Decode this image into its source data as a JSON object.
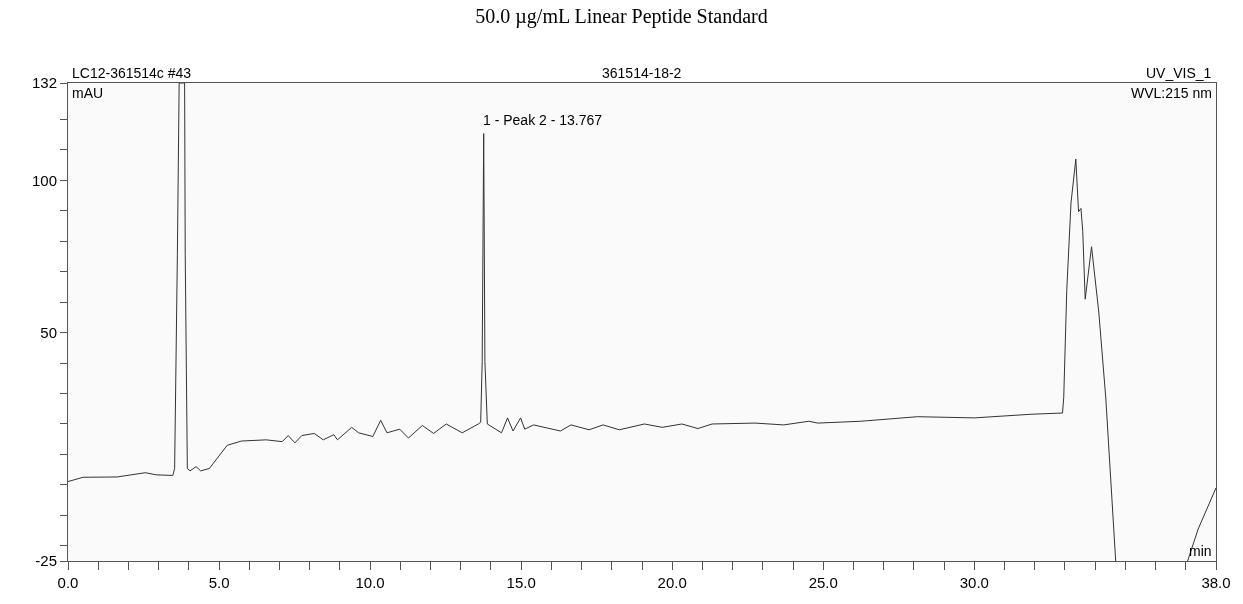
{
  "chart_data": {
    "type": "line",
    "title": "50.0 µg/mL Linear Peptide Standard",
    "xlabel": "min",
    "ylabel": "mAU",
    "annotations": [
      "LC12-361514c #43",
      "361514-18-2",
      "UV_VIS_1",
      "WVL:215 nm",
      {
        "text": "1 - Peak 2 - 13.767",
        "x": 13.767,
        "y": 115.4
      }
    ],
    "xlim": [
      0,
      38
    ],
    "ylim": [
      -25,
      132
    ],
    "xticks": [
      {
        "value": 0,
        "label": "0.0"
      },
      {
        "value": 1,
        "label": null
      },
      {
        "value": 2,
        "label": null
      },
      {
        "value": 3,
        "label": null
      },
      {
        "value": 4,
        "label": null
      },
      {
        "value": 5,
        "label": "5.0"
      },
      {
        "value": 6,
        "label": null
      },
      {
        "value": 7,
        "label": null
      },
      {
        "value": 8,
        "label": null
      },
      {
        "value": 9,
        "label": null
      },
      {
        "value": 10,
        "label": "10.0"
      },
      {
        "value": 11,
        "label": null
      },
      {
        "value": 12,
        "label": null
      },
      {
        "value": 13,
        "label": null
      },
      {
        "value": 14,
        "label": null
      },
      {
        "value": 15,
        "label": "15.0"
      },
      {
        "value": 16,
        "label": null
      },
      {
        "value": 17,
        "label": null
      },
      {
        "value": 18,
        "label": null
      },
      {
        "value": 19,
        "label": null
      },
      {
        "value": 20,
        "label": "20.0"
      },
      {
        "value": 21,
        "label": null
      },
      {
        "value": 22,
        "label": null
      },
      {
        "value": 23,
        "label": null
      },
      {
        "value": 24,
        "label": null
      },
      {
        "value": 25,
        "label": "25.0"
      },
      {
        "value": 26,
        "label": null
      },
      {
        "value": 27,
        "label": null
      },
      {
        "value": 28,
        "label": null
      },
      {
        "value": 29,
        "label": null
      },
      {
        "value": 30,
        "label": "30.0"
      },
      {
        "value": 31,
        "label": null
      },
      {
        "value": 32,
        "label": null
      },
      {
        "value": 33,
        "label": null
      },
      {
        "value": 34,
        "label": null
      },
      {
        "value": 35,
        "label": null
      },
      {
        "value": 36,
        "label": null
      },
      {
        "value": 37,
        "label": null
      },
      {
        "value": 38,
        "label": "38.0"
      }
    ],
    "yticks": [
      -25,
      {
        "value": -20,
        "label": null
      },
      {
        "value": -10,
        "label": null
      },
      {
        "value": 0,
        "label": null
      },
      {
        "value": 10,
        "label": null
      },
      {
        "value": 20,
        "label": null
      },
      {
        "value": 30,
        "label": null
      },
      {
        "value": 40,
        "label": null
      },
      50,
      {
        "value": 60,
        "label": null
      },
      {
        "value": 70,
        "label": null
      },
      {
        "value": 80,
        "label": null
      },
      {
        "value": 90,
        "label": null
      },
      100,
      {
        "value": 110,
        "label": null
      },
      {
        "value": 120,
        "label": null
      },
      132
    ],
    "marker": "none",
    "line_style": "solid",
    "series": [
      {
        "color": "#333333",
        "x": [
          0,
          0.5,
          1.62,
          2.56,
          2.92,
          3.47,
          3.53,
          3.62,
          3.68,
          3.86,
          3.88,
          3.95,
          4.04,
          4.24,
          4.39,
          4.68,
          5.27,
          5.74,
          6.56,
          7.09,
          7.29,
          7.51,
          7.74,
          8.15,
          8.45,
          8.8,
          8.92,
          9.39,
          9.62,
          10.09,
          10.35,
          10.56,
          10.98,
          11.27,
          11.73,
          12.1,
          12.52,
          13.05,
          13.58,
          13.66,
          13.71,
          13.76,
          13.8,
          13.88,
          14.35,
          14.55,
          14.73,
          14.98,
          15.12,
          15.41,
          16.3,
          16.65,
          17.25,
          17.71,
          18.25,
          19.08,
          19.67,
          20.32,
          20.85,
          21.32,
          22.74,
          23.69,
          24.52,
          24.82,
          26.24,
          28.12,
          30,
          31.88,
          32.92,
          32.96,
          33.06,
          33.2,
          33.36,
          33.45,
          33.53,
          33.59,
          33.67,
          33.88,
          34.12,
          34.35,
          34.68,
          35.5,
          37.06,
          37.41,
          38
        ],
        "values": [
          1.1,
          2.5,
          2.6,
          4.0,
          3.3,
          3.1,
          5.4,
          75.6,
          132,
          132,
          75.6,
          5.4,
          4.6,
          6.0,
          4.6,
          5.4,
          13.0,
          14.4,
          14.8,
          14.2,
          16.2,
          13.8,
          16.2,
          16.9,
          14.8,
          16.5,
          14.8,
          18.9,
          17.1,
          15.9,
          21.2,
          17.1,
          18.3,
          15.4,
          19.5,
          16.9,
          20.0,
          17.1,
          20.0,
          20.6,
          40.5,
          115.4,
          40.5,
          20.0,
          17.1,
          22.0,
          17.7,
          22.0,
          18.3,
          19.7,
          17.7,
          19.7,
          18.1,
          19.7,
          18.1,
          20.0,
          18.9,
          20.0,
          18.5,
          20.0,
          20.3,
          19.7,
          20.9,
          20.3,
          20.9,
          22.4,
          22.0,
          23.2,
          23.6,
          28.8,
          63.9,
          92.6,
          107,
          89.7,
          90.8,
          83.2,
          61.0,
          78.2,
          56.8,
          28.8,
          -25,
          null,
          -25,
          -14.5,
          -1.0
        ]
      }
    ]
  }
}
